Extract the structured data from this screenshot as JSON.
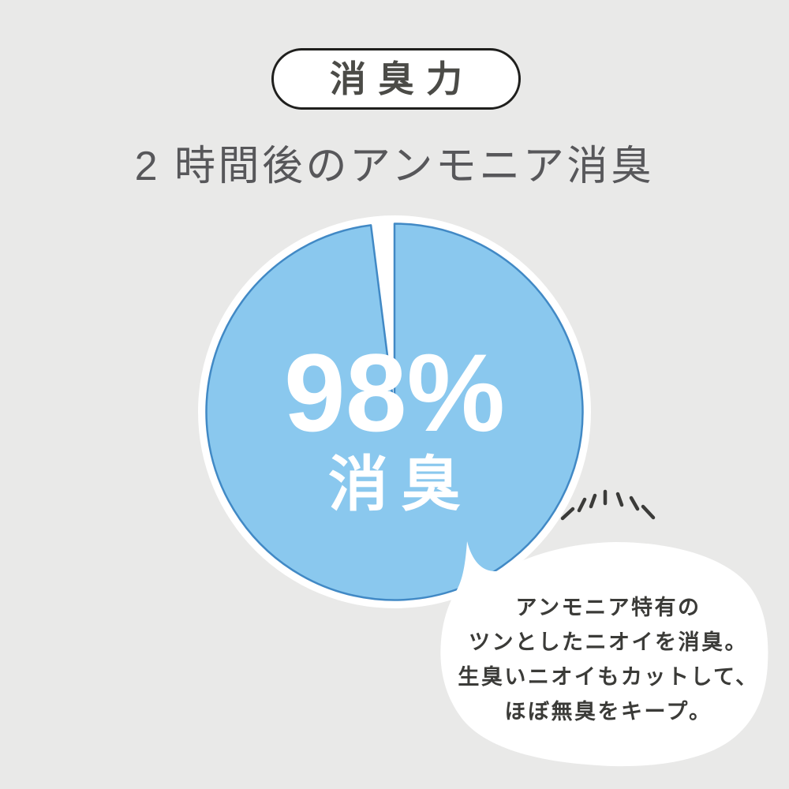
{
  "badge": {
    "label": "消臭力"
  },
  "title": {
    "text": "2 時間後のアンモニア消臭"
  },
  "chart_data": {
    "type": "pie",
    "title": "2 時間後のアンモニア消臭",
    "slices": [
      {
        "label": "消臭",
        "value": 98,
        "color": "#8ac8ee"
      },
      {
        "label": "",
        "value": 2,
        "color": "#ffffff"
      }
    ],
    "start_angle_deg": 0,
    "direction": "clockwise",
    "stroke_color": "#4189c5",
    "ring_color": "#ffffff",
    "legend": "none",
    "center_labels": {
      "percent": "98%",
      "caption": "消臭"
    }
  },
  "speech_bubble": {
    "lines": [
      "アンモニア特有の",
      "ツンとしたニオイを消臭。",
      "生臭いニオイもカットして、",
      "ほぼ無臭をキープ。"
    ]
  },
  "colors": {
    "background": "#e9e9e8",
    "badge_border": "#1f1f1d",
    "badge_text": "#4b4b47",
    "title_text": "#57575a",
    "pie_fill": "#8ac8ee",
    "pie_stroke": "#4189c5",
    "pie_label_text": "#ffffff",
    "bubble_fill": "#ffffff",
    "bubble_text": "#3b3b38",
    "emphasis_marks": "#3b3b39"
  }
}
